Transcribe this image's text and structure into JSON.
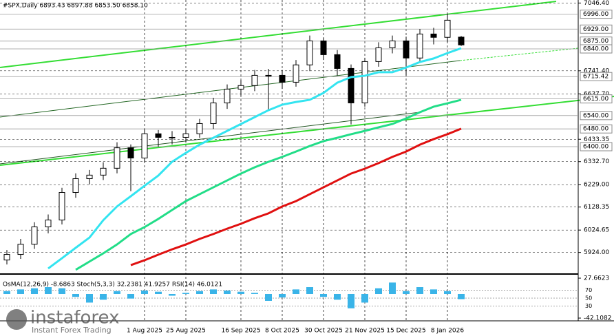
{
  "chart_data": [
    {
      "type": "candlestick",
      "title": "#SPX,Daily 6893.43 6897.88 6853.50 6858.10",
      "categories": [
        null,
        null,
        null,
        null,
        null,
        null,
        null,
        null,
        null,
        null,
        "1 Aug 2025",
        null,
        null,
        "25 Aug 2025",
        null,
        null,
        null,
        "16 Sep 2025",
        null,
        null,
        "8 Oct 2025",
        null,
        null,
        "30 Oct 2025",
        null,
        null,
        "21 Nov 2025",
        null,
        null,
        "15 Dec 2025",
        null,
        null,
        "8 Jan 2026",
        null
      ],
      "open": [
        5890,
        5915,
        5961,
        6039,
        6070,
        6194,
        6256,
        6272,
        6303,
        6395,
        6349,
        6458,
        6442,
        6442,
        6458,
        6504,
        6597,
        6659,
        6675,
        6721,
        6721,
        6690,
        6768,
        6876,
        6814,
        6752,
        6597,
        6783,
        6845,
        6876,
        6799,
        6907,
        6892,
        6893
      ],
      "high": [
        5935,
        5985,
        6060,
        6095,
        6215,
        6280,
        6295,
        6330,
        6420,
        6410,
        6480,
        6475,
        6470,
        6480,
        6525,
        6620,
        6680,
        6700,
        6745,
        6750,
        6745,
        6790,
        6900,
        6890,
        6835,
        6770,
        6800,
        6870,
        6900,
        6895,
        6930,
        6935,
        6998,
        6898
      ],
      "low": [
        5870,
        5895,
        5940,
        6010,
        6050,
        6170,
        6230,
        6250,
        6280,
        6200,
        6330,
        6400,
        6410,
        6420,
        6440,
        6480,
        6570,
        6630,
        6650,
        6560,
        6660,
        6670,
        6740,
        6790,
        6720,
        6500,
        6580,
        6760,
        6820,
        6720,
        6780,
        6860,
        6870,
        6853
      ],
      "close": [
        5915,
        5961,
        6039,
        6070,
        6194,
        6256,
        6272,
        6303,
        6395,
        6349,
        6458,
        6442,
        6442,
        6458,
        6504,
        6597,
        6659,
        6675,
        6721,
        6721,
        6690,
        6768,
        6876,
        6814,
        6752,
        6597,
        6783,
        6845,
        6876,
        6799,
        6907,
        6892,
        6969,
        6858
      ],
      "series": [
        {
          "color": "#33e4f0",
          "values": [
            null,
            null,
            null,
            5852,
            5898,
            5945,
            5991,
            6069,
            6131,
            6177,
            6224,
            6270,
            6332,
            6372,
            6409,
            6440,
            6471,
            6502,
            6533,
            6564,
            6589,
            6601,
            6611,
            6642,
            6688,
            6713,
            6719,
            6735,
            6735,
            6756,
            6781,
            6797,
            6821,
            6843
          ]
        },
        {
          "color": "#22dd88",
          "values": [
            null,
            null,
            null,
            null,
            null,
            5846,
            5883,
            5920,
            5960,
            6007,
            6038,
            6075,
            6115,
            6155,
            6186,
            6217,
            6248,
            6279,
            6307,
            6332,
            6354,
            6378,
            6403,
            6425,
            6440,
            6456,
            6471,
            6487,
            6502,
            6527,
            6555,
            6580,
            6595,
            6611
          ]
        },
        {
          "color": "#e01010",
          "values": [
            null,
            null,
            null,
            null,
            null,
            null,
            null,
            null,
            null,
            5867,
            5889,
            5914,
            5938,
            5960,
            5985,
            6007,
            6031,
            6053,
            6078,
            6100,
            6131,
            6155,
            6186,
            6217,
            6248,
            6279,
            6301,
            6326,
            6354,
            6378,
            6409,
            6434,
            6456,
            6481
          ]
        }
      ],
      "ylim": [
        5830,
        7060
      ],
      "yticks": [
        {
          "value": 7046.4,
          "label": "7046.40"
        },
        {
          "value": 6741.4,
          "label": "6741.40"
        },
        {
          "value": 6637.7,
          "label": "6637.70"
        },
        {
          "value": 6433.35,
          "label": "6433.35"
        },
        {
          "value": 6332.7,
          "label": "6332.70"
        },
        {
          "value": 6229,
          "label": "6229.00"
        },
        {
          "value": 6128.35,
          "label": "6128.35"
        },
        {
          "value": 6024.65,
          "label": "6024.65"
        },
        {
          "value": 5924,
          "label": "5924.00"
        }
      ],
      "levels": [
        {
          "value": 6996,
          "label": "6996.00"
        },
        {
          "value": 6929,
          "label": "6929.00"
        },
        {
          "value": 6875,
          "label": "6875.00"
        },
        {
          "value": 6840,
          "label": "6840.00"
        },
        6715.42,
        {
          "value": 6615,
          "label": "6615.00"
        },
        {
          "value": 6540,
          "label": "6540.00"
        },
        {
          "value": 6480,
          "label": "6480.00"
        },
        {
          "value": 6400,
          "label": "6400.00"
        }
      ],
      "grid": true
    },
    {
      "type": "bar",
      "title": "OsMA(12,26,9) -8.6863 Stoch(5,3,3) 32.2381 41.9257 RSI(14) 46.0121",
      "values": [
        5,
        8,
        10,
        12,
        10,
        -5,
        -15,
        -10,
        5,
        -8,
        6,
        4,
        -3,
        2,
        5,
        8,
        6,
        4,
        2,
        -12,
        -6,
        8,
        12,
        -5,
        -10,
        -25,
        -15,
        10,
        20,
        5,
        12,
        8,
        5,
        -9
      ],
      "color": "#3ab4e8",
      "ylim": [
        -42.1082,
        27.6623
      ],
      "yticks": [
        27.6623,
        -42.1082
      ],
      "levels": [
        70,
        50,
        30
      ]
    }
  ],
  "logo": {
    "name": "instaforex",
    "tagline": "Instant Forex Trading"
  }
}
